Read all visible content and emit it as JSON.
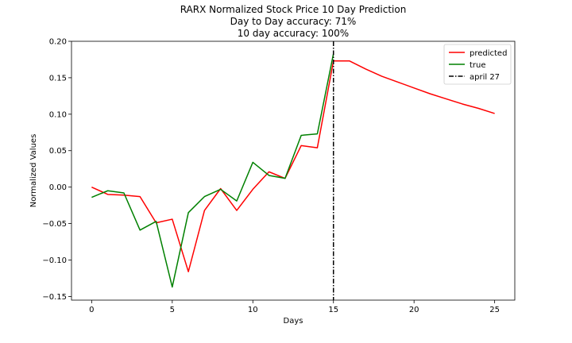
{
  "chart_data": {
    "type": "line",
    "title_lines": [
      "RARX Normalized Stock Price 10 Day Prediction",
      "Day to Day accuracy: 71%",
      "10 day accuracy: 100%"
    ],
    "xlabel": "Days",
    "ylabel": "Normalized Values",
    "xlim": [
      -1.25,
      26.25
    ],
    "ylim": [
      -0.155,
      0.2
    ],
    "xticks": [
      0,
      5,
      10,
      15,
      20,
      25
    ],
    "xtick_labels": [
      "0",
      "5",
      "10",
      "15",
      "20",
      "25"
    ],
    "yticks": [
      -0.15,
      -0.1,
      -0.05,
      0.0,
      0.05,
      0.1,
      0.15,
      0.2
    ],
    "ytick_labels": [
      "−0.15",
      "−0.10",
      "−0.05",
      "0.00",
      "0.05",
      "0.10",
      "0.15",
      "0.20"
    ],
    "legend_position": "top-right",
    "series": [
      {
        "name": "predicted",
        "color": "#ff0000",
        "x": [
          0,
          1,
          2,
          3,
          4,
          5,
          6,
          7,
          8,
          9,
          10,
          11,
          12,
          13,
          14,
          15,
          16,
          17,
          18,
          19,
          20,
          21,
          22,
          23,
          24,
          25
        ],
        "values": [
          0.0,
          -0.01,
          -0.011,
          -0.013,
          -0.049,
          -0.044,
          -0.116,
          -0.032,
          -0.002,
          -0.032,
          -0.003,
          0.021,
          0.012,
          0.057,
          0.054,
          0.173,
          0.173,
          0.162,
          0.152,
          0.144,
          0.136,
          0.128,
          0.121,
          0.114,
          0.108,
          0.101
        ]
      },
      {
        "name": "true",
        "color": "#008000",
        "x": [
          0,
          1,
          2,
          3,
          4,
          5,
          6,
          7,
          8,
          9,
          10,
          11,
          12,
          13,
          14,
          15
        ],
        "values": [
          -0.014,
          -0.005,
          -0.008,
          -0.059,
          -0.047,
          -0.137,
          -0.035,
          -0.013,
          -0.003,
          -0.019,
          0.034,
          0.016,
          0.012,
          0.071,
          0.073,
          0.183
        ]
      }
    ],
    "vline": {
      "name": "april 27",
      "x": 15,
      "color": "#000000",
      "style": "dash-dot"
    }
  }
}
